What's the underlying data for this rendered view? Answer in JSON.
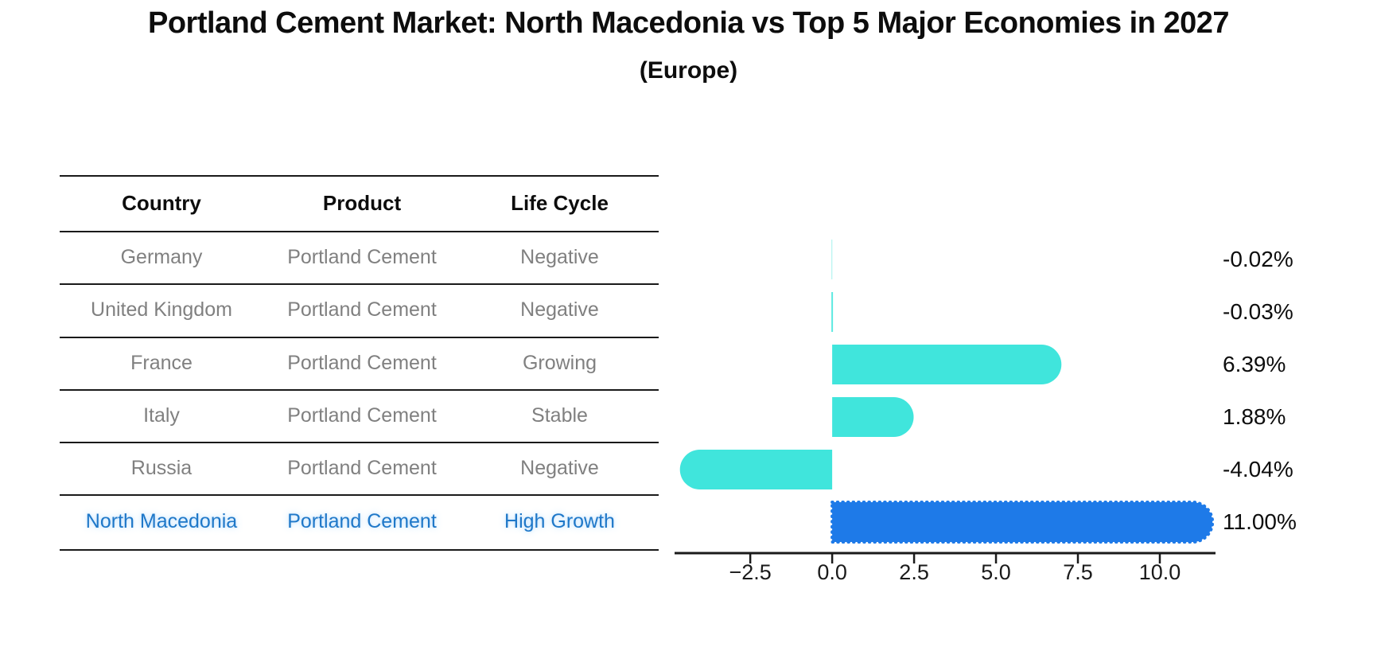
{
  "title": "Portland Cement Market: North Macedonia vs Top 5 Major Economies in 2027",
  "subtitle": "(Europe)",
  "table": {
    "headers": [
      "Country",
      "Product",
      "Life Cycle"
    ],
    "rows": [
      {
        "country": "Germany",
        "product": "Portland Cement",
        "life_cycle": "Negative",
        "highlight": false
      },
      {
        "country": "United Kingdom",
        "product": "Portland Cement",
        "life_cycle": "Negative",
        "highlight": false
      },
      {
        "country": "France",
        "product": "Portland Cement",
        "life_cycle": "Growing",
        "highlight": false
      },
      {
        "country": "Italy",
        "product": "Portland Cement",
        "life_cycle": "Stable",
        "highlight": false
      },
      {
        "country": "Russia",
        "product": "Portland Cement",
        "life_cycle": "Negative",
        "highlight": false
      },
      {
        "country": "North Macedonia",
        "product": "Portland Cement",
        "life_cycle": "High Growth",
        "highlight": true
      }
    ]
  },
  "chart_data": {
    "type": "bar",
    "orientation": "horizontal",
    "title": "Portland Cement Market: North Macedonia vs Top 5 Major Economies in 2027 (Europe)",
    "categories": [
      "Germany",
      "United Kingdom",
      "France",
      "Italy",
      "Russia",
      "North Macedonia"
    ],
    "values": [
      -0.02,
      -0.03,
      6.39,
      1.88,
      -4.04,
      11.0
    ],
    "value_labels": [
      "-0.02%",
      "-0.03%",
      "6.39%",
      "1.88%",
      "-4.04%",
      "11.00%"
    ],
    "x_ticks": [
      -2.5,
      0.0,
      2.5,
      5.0,
      7.5,
      10.0
    ],
    "x_tick_labels": [
      "−2.5",
      "0.0",
      "2.5",
      "5.0",
      "7.5",
      "10.0"
    ],
    "xlim": [
      -4.81,
      11.7
    ],
    "grid": false,
    "legend": false,
    "highlight_index": 5,
    "highlight_border_style": "dotted",
    "colors": {
      "bar_default": "#40E5DC",
      "bar_highlight": "#1E7AE8",
      "axis": "#1a1a1a",
      "muted_text": "#808080",
      "highlight_text": "#1f78c8"
    }
  }
}
